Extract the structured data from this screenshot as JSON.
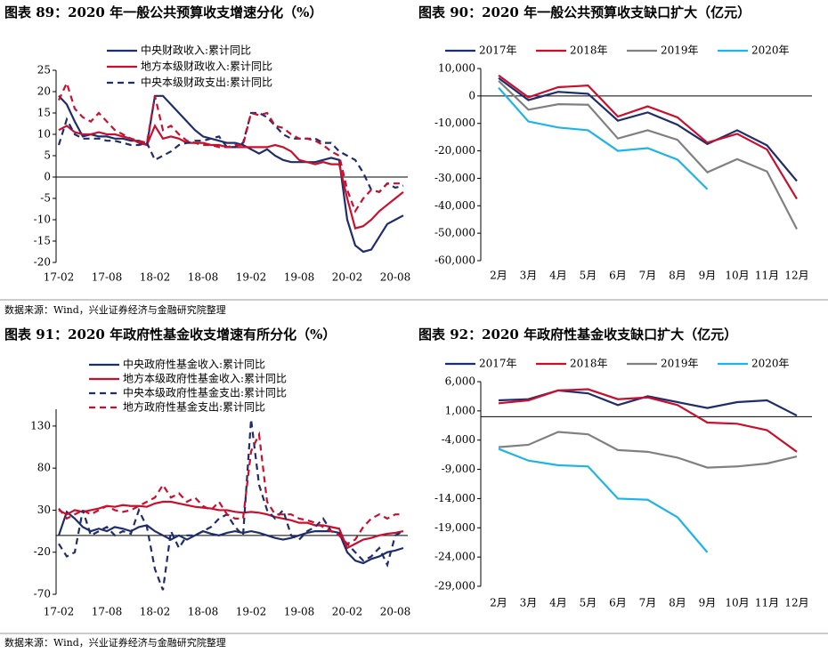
{
  "sources": [
    "数据来源：Wind，兴业证券经济与金融研究院整理",
    "数据来源：Wind，兴业证券经济与金融研究院整理"
  ],
  "chart_data": [
    {
      "type": "line",
      "title": "图表 89：2020 年一般公共预算收支增速分化（%）",
      "legend": "upper left",
      "categories": [
        "17-02",
        null,
        null,
        null,
        null,
        null,
        "17-08",
        null,
        null,
        null,
        null,
        null,
        "18-02",
        null,
        null,
        null,
        null,
        null,
        "18-08",
        null,
        null,
        null,
        null,
        null,
        "19-02",
        null,
        null,
        null,
        null,
        null,
        "19-08",
        null,
        null,
        null,
        null,
        null,
        "20-02",
        null,
        null,
        null,
        null,
        null,
        "20-08",
        null
      ],
      "ylim": [
        -20,
        25
      ],
      "yticks": [
        -20,
        -15,
        -10,
        -5,
        0,
        5,
        10,
        15,
        20,
        25
      ],
      "series": [
        {
          "name": "中央财政收入:累计同比",
          "color": "#1f2d6b",
          "dash": false,
          "values": [
            19,
            17,
            13,
            9.5,
            10,
            9.5,
            9.5,
            9,
            9,
            8.5,
            8.5,
            7.5,
            19,
            19,
            17,
            15,
            13,
            11,
            9.5,
            9,
            8.5,
            8,
            8,
            7.5,
            6.5,
            5.5,
            6.5,
            5,
            4,
            3.5,
            3.5,
            3.5,
            3.5,
            4,
            4.5,
            4,
            -10,
            -16,
            -17.5,
            -17,
            -14,
            -11,
            -10,
            -9
          ]
        },
        {
          "name": "地方本级财政收入:累计同比",
          "color": "#c8102e",
          "dash": false,
          "values": [
            11,
            12,
            10.5,
            10,
            10,
            10.5,
            10,
            10,
            9.5,
            9,
            8,
            7.5,
            12,
            9,
            9.5,
            9,
            8,
            8,
            8,
            7.5,
            7.5,
            7,
            7,
            7,
            7,
            7,
            7,
            7.5,
            7,
            6,
            4,
            3.5,
            3,
            3.5,
            3,
            3,
            -5,
            -12,
            -11.5,
            -10,
            -8,
            -6.5,
            -5,
            -3.5
          ]
        },
        {
          "name": "中央本级财政支出:累计同比",
          "color": "#1f2d6b",
          "dash": true,
          "values": [
            7.5,
            13.5,
            10,
            9,
            9,
            9,
            8.5,
            8.5,
            8,
            7.5,
            7.5,
            8,
            4,
            5,
            6,
            7.5,
            8,
            8.5,
            8.5,
            9,
            9.5,
            7,
            7,
            8,
            15,
            15,
            14,
            12,
            10,
            9,
            9,
            9,
            9,
            8,
            8,
            6,
            5,
            4,
            1,
            -3,
            -3.5,
            -1.5,
            -2.5,
            -2
          ]
        },
        {
          "color": "#c8102e",
          "dash": true,
          "values": [
            18,
            22,
            16,
            14,
            13,
            15,
            13,
            11,
            10,
            9,
            8.5,
            8,
            19,
            11,
            12,
            10,
            8.5,
            8,
            7.5,
            7.5,
            7,
            7,
            7.5,
            7.5,
            15,
            14.5,
            15,
            12,
            11.5,
            10,
            9,
            9,
            8.5,
            7.5,
            6,
            5,
            -3,
            -8,
            -5,
            -3,
            -3.5,
            -1.5,
            -1.5,
            -1.5
          ]
        }
      ]
    },
    {
      "type": "line",
      "title": "图表 90：2020 年一般公共预算收支缺口扩大（亿元）",
      "legend": "top",
      "categories": [
        "2月",
        "3月",
        "4月",
        "5月",
        "6月",
        "7月",
        "8月",
        "9月",
        "10月",
        "11月",
        "12月"
      ],
      "ylim": [
        -60000,
        10000
      ],
      "yticks": [
        {
          "value": -60000,
          "label": "-60,000"
        },
        {
          "value": -50000,
          "label": "-50,000"
        },
        {
          "value": -40000,
          "label": "-40,000"
        },
        {
          "value": -30000,
          "label": "-30,000"
        },
        {
          "value": -20000,
          "label": "-20,000"
        },
        {
          "value": -10000,
          "label": "-10,000"
        },
        0,
        {
          "value": 10000,
          "label": "10,000"
        }
      ],
      "series": [
        {
          "name": "2017年",
          "color": "#1f2d6b",
          "dash": false,
          "values": [
            6500,
            -1500,
            1500,
            800,
            -9000,
            -6000,
            -10500,
            -17500,
            -12500,
            -18000,
            -31000
          ]
        },
        {
          "name": "2018年",
          "color": "#c8102e",
          "dash": false,
          "values": [
            7500,
            -500,
            3200,
            3800,
            -7500,
            -3800,
            -7800,
            -17000,
            -13800,
            -19500,
            -37500
          ]
        },
        {
          "name": "2019年",
          "color": "#808080",
          "dash": false,
          "values": [
            5500,
            -5000,
            -3000,
            -3200,
            -15500,
            -12500,
            -16000,
            -27800,
            -23000,
            -27500,
            -48500
          ]
        },
        {
          "name": "2020年",
          "color": "#1fb4e8",
          "dash": false,
          "values": [
            3000,
            -9300,
            -11500,
            -12500,
            -20000,
            -19000,
            -23200,
            -34000,
            null,
            null,
            null
          ]
        }
      ]
    },
    {
      "type": "line",
      "title": "图表 91：2020 年政府性基金收支增速有所分化（%）",
      "legend": "upper left",
      "categories": [
        "17-02",
        null,
        null,
        null,
        null,
        null,
        "17-08",
        null,
        null,
        null,
        null,
        null,
        "18-02",
        null,
        null,
        null,
        null,
        null,
        "18-08",
        null,
        null,
        null,
        null,
        null,
        "19-02",
        null,
        null,
        null,
        null,
        null,
        "19-08",
        null,
        null,
        null,
        null,
        null,
        "20-02",
        null,
        null,
        null,
        null,
        null,
        "20-08",
        null
      ],
      "ylim": [
        -70,
        150
      ],
      "yticks": [
        -70,
        -20,
        30,
        80,
        130
      ],
      "series": [
        {
          "name": "中央政府性基金收入:累计同比",
          "color": "#1f2d6b",
          "dash": false,
          "values": [
            0,
            28,
            20,
            10,
            5,
            8,
            5,
            10,
            8,
            5,
            10,
            12,
            5,
            0,
            -5,
            0,
            -5,
            0,
            5,
            2,
            0,
            3,
            5,
            3,
            5,
            3,
            0,
            -3,
            -5,
            -3,
            0,
            3,
            5,
            5,
            5,
            3,
            -20,
            -30,
            -33,
            -28,
            -25,
            -20,
            -18,
            -15
          ]
        },
        {
          "name": "地方本级政府性基金收入:累计同比",
          "color": "#c8102e",
          "dash": false,
          "values": [
            30,
            25,
            30,
            28,
            30,
            32,
            35,
            34,
            36,
            35,
            35,
            34,
            38,
            40,
            40,
            38,
            36,
            34,
            33,
            32,
            30,
            30,
            28,
            27,
            28,
            27,
            25,
            22,
            20,
            18,
            15,
            15,
            12,
            12,
            10,
            8,
            -15,
            -10,
            -5,
            -3,
            0,
            2,
            3,
            5
          ]
        },
        {
          "name": "中央本级政府性基金支出:累计同比",
          "color": "#1f2d6b",
          "dash": true,
          "values": [
            -10,
            -25,
            -20,
            30,
            0,
            5,
            10,
            0,
            5,
            2,
            30,
            10,
            -40,
            -65,
            5,
            -15,
            0,
            0,
            5,
            10,
            20,
            25,
            10,
            0,
            138,
            60,
            30,
            20,
            30,
            0,
            -5,
            5,
            10,
            20,
            5,
            0,
            -10,
            -20,
            -30,
            -25,
            -15,
            -35,
            0,
            5
          ]
        },
        {
          "name": "地方政府性基金支出:累计同比",
          "color": "#c8102e",
          "dash": true,
          "values": [
            32,
            20,
            25,
            30,
            25,
            30,
            35,
            30,
            28,
            30,
            35,
            40,
            45,
            60,
            45,
            50,
            40,
            45,
            35,
            30,
            40,
            25,
            20,
            20,
            100,
            120,
            40,
            25,
            25,
            25,
            20,
            18,
            15,
            10,
            5,
            0,
            -10,
            -5,
            10,
            20,
            25,
            20,
            25,
            25
          ]
        }
      ]
    },
    {
      "type": "line",
      "title": "图表 92：2020 年政府性基金收支缺口扩大（亿元）",
      "legend": "top",
      "categories": [
        "2月",
        "3月",
        "4月",
        "5月",
        "6月",
        "7月",
        "8月",
        "9月",
        "10月",
        "11月",
        "12月"
      ],
      "ylim": [
        -29000,
        6000
      ],
      "yticks": [
        {
          "value": -29000,
          "label": "-29,000"
        },
        {
          "value": -24000,
          "label": "-24,000"
        },
        {
          "value": -19000,
          "label": "-19,000"
        },
        {
          "value": -14000,
          "label": "-14,000"
        },
        {
          "value": -9000,
          "label": "-9,000"
        },
        {
          "value": -4000,
          "label": "-4,000"
        },
        {
          "value": 1000,
          "label": "1,000"
        },
        {
          "value": 6000,
          "label": "6,000"
        }
      ],
      "series": [
        {
          "name": "2017年",
          "color": "#1f2d6b",
          "dash": false,
          "values": [
            2800,
            3000,
            4500,
            4000,
            2000,
            3500,
            2500,
            1500,
            2500,
            2800,
            200
          ]
        },
        {
          "name": "2018年",
          "color": "#c8102e",
          "dash": false,
          "values": [
            2300,
            2800,
            4500,
            4700,
            3000,
            3300,
            2000,
            -1000,
            -1200,
            -2300,
            -6000
          ]
        },
        {
          "name": "2019年",
          "color": "#808080",
          "dash": false,
          "values": [
            -5200,
            -4800,
            -2600,
            -3000,
            -5700,
            -6000,
            -7000,
            -8700,
            -8500,
            -8000,
            -6800
          ]
        },
        {
          "name": "2020年",
          "color": "#1fb4e8",
          "dash": false,
          "values": [
            -5500,
            -7500,
            -8300,
            -8500,
            -14000,
            -14200,
            -17200,
            -23200,
            null,
            null,
            null
          ]
        }
      ]
    }
  ]
}
